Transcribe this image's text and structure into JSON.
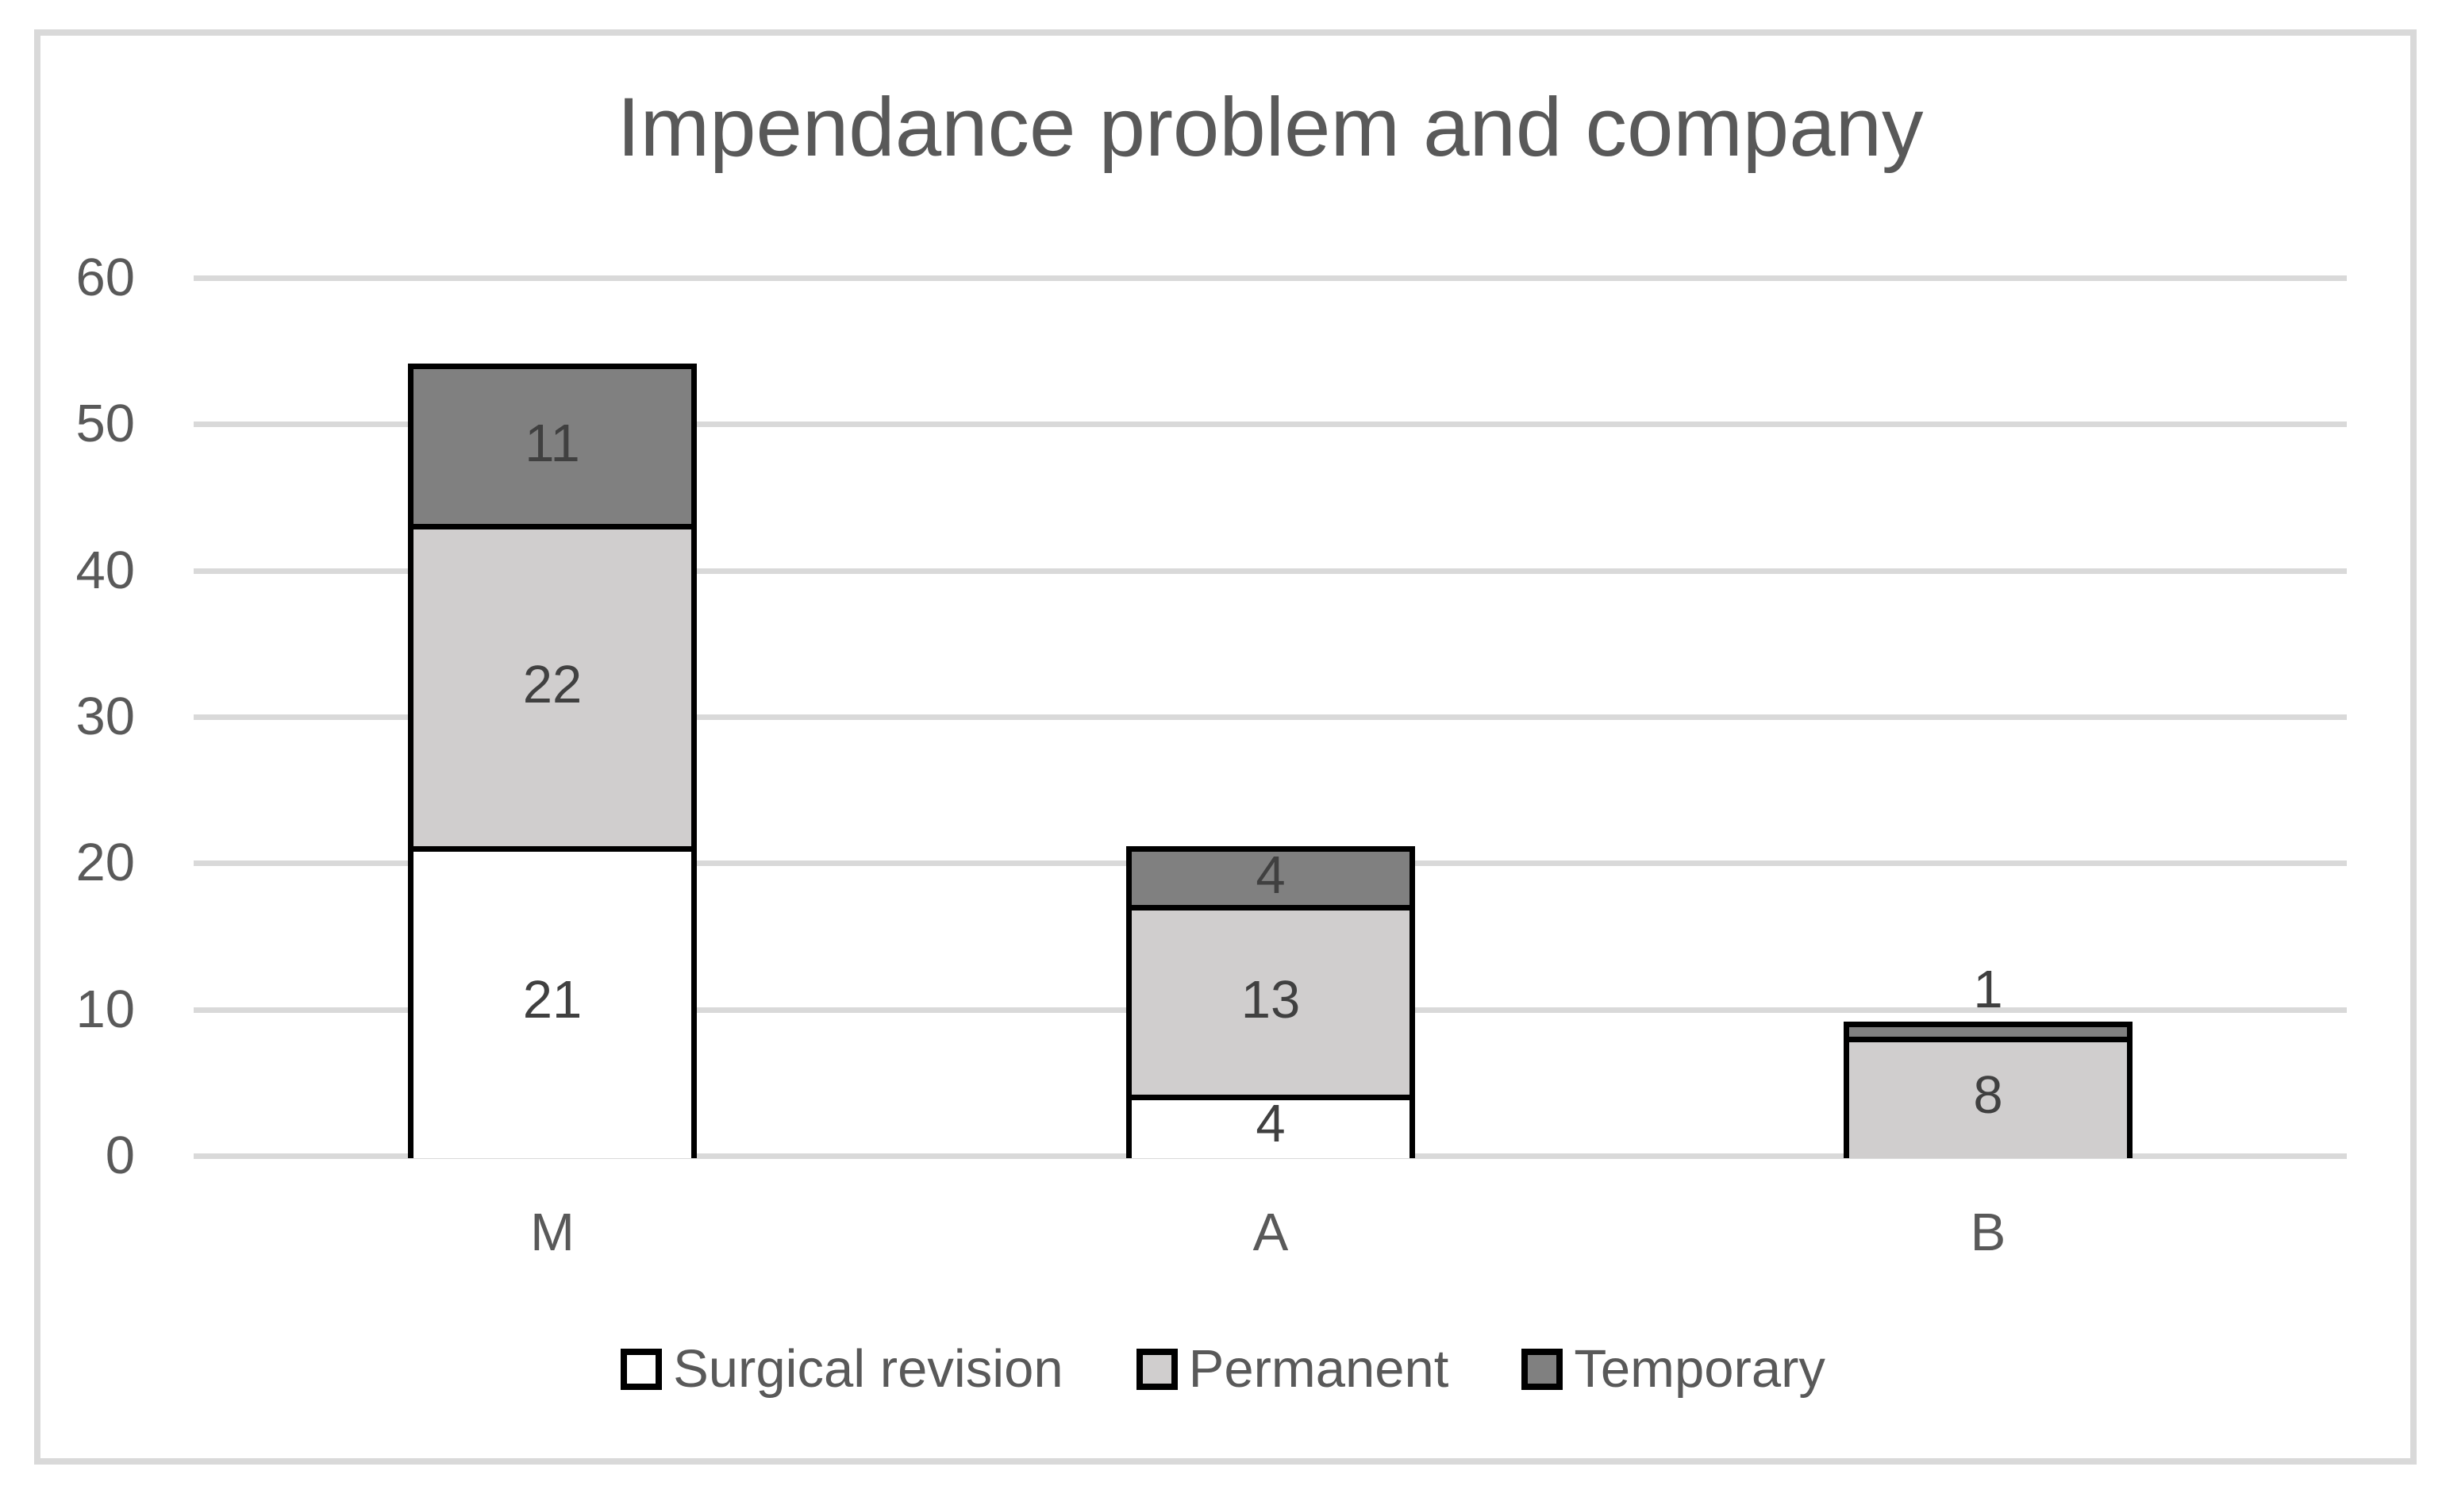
{
  "frame": {
    "background": "#ffffff",
    "border_color": "#d9d9d9"
  },
  "chart_data": {
    "type": "bar",
    "stacked": true,
    "title": "Impendance problem and company",
    "categories": [
      "M",
      "A",
      "B"
    ],
    "series": [
      {
        "name": "Surgical revision",
        "fill": "#ffffff",
        "values": [
          21,
          4,
          0
        ]
      },
      {
        "name": "Permanent",
        "fill": "#d0cece",
        "values": [
          22,
          13,
          8
        ]
      },
      {
        "name": "Temporary",
        "fill": "#808080",
        "values": [
          11,
          4,
          1
        ]
      }
    ],
    "ylim": [
      0,
      60
    ],
    "yticks": [
      0,
      10,
      20,
      30,
      40,
      50,
      60
    ],
    "grid": true,
    "legend_position": "bottom",
    "xlabel": "",
    "ylabel": "",
    "colors": {
      "gridline": "#d9d9d9",
      "bar_border": "#000000",
      "title_text": "#595959",
      "axis_text": "#595959",
      "data_label_text": "#404040",
      "legend_text": "#595959"
    }
  }
}
